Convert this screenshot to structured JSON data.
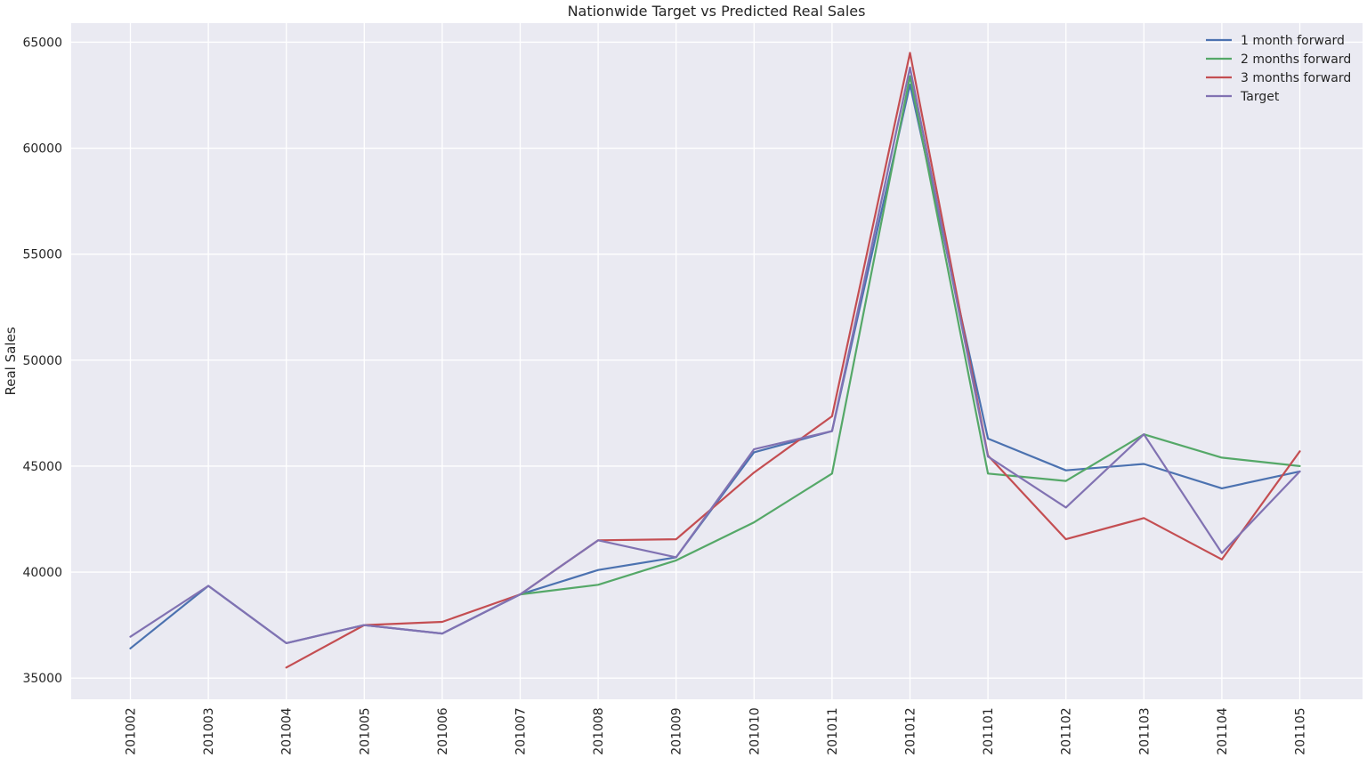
{
  "chart_data": {
    "type": "line",
    "title": "Nationwide Target vs Predicted Real Sales",
    "xlabel": "",
    "ylabel": "Real Sales",
    "categories": [
      "201002",
      "201003",
      "201004",
      "201005",
      "201006",
      "201007",
      "201008",
      "201009",
      "201010",
      "201011",
      "201012",
      "201101",
      "201102",
      "201103",
      "201104",
      "201105"
    ],
    "ylim": [
      34000,
      65900
    ],
    "yticks": [
      35000,
      40000,
      45000,
      50000,
      55000,
      60000,
      65000
    ],
    "grid": true,
    "legend_position": "top-right",
    "series": [
      {
        "name": "1 month forward",
        "color": "#4c72b0",
        "values": [
          36400,
          39350,
          36650,
          37500,
          37100,
          38950,
          40100,
          40700,
          45650,
          46650,
          63000,
          46300,
          44800,
          45100,
          43950,
          44750
        ]
      },
      {
        "name": "2 months forward",
        "color": "#55a868",
        "values": [
          null,
          null,
          null,
          null,
          null,
          38950,
          39400,
          40550,
          42350,
          44650,
          63400,
          44650,
          44300,
          46500,
          45400,
          45000
        ]
      },
      {
        "name": "3 months forward",
        "color": "#c44e52",
        "values": [
          null,
          null,
          35500,
          37500,
          37650,
          38950,
          41500,
          41550,
          44700,
          47350,
          64500,
          45500,
          41550,
          42550,
          40600,
          45700
        ]
      },
      {
        "name": "Target",
        "color": "#8172b2",
        "values": [
          36950,
          39350,
          36650,
          37500,
          37100,
          38950,
          41500,
          40700,
          45800,
          46650,
          63800,
          45450,
          43050,
          46500,
          40900,
          44750
        ]
      }
    ]
  }
}
